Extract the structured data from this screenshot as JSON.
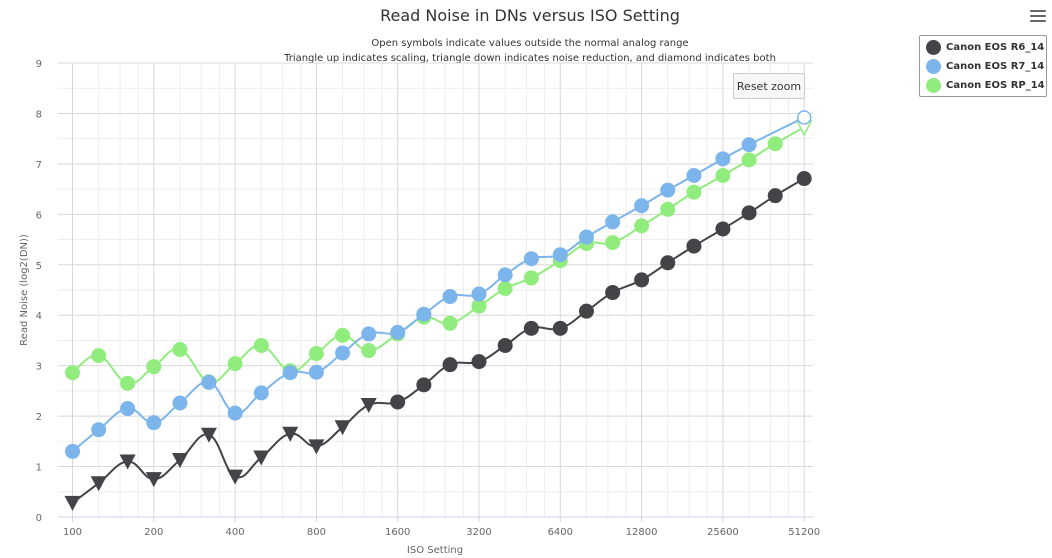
{
  "chart_data": {
    "type": "line",
    "title": "Read Noise in DNs versus ISO Setting",
    "subtitle_lines": [
      "Open symbols indicate values outside the normal analog range",
      "Triangle up indicates scaling, triangle down indicates noise reduction, and diamond indicates both"
    ],
    "xlabel": "ISO Setting",
    "ylabel": "Read Noise (log2(DN))",
    "x_scale": "log2",
    "x_ticks": [
      "100",
      "200",
      "400",
      "800",
      "1600",
      "3200",
      "6400",
      "12800",
      "25600",
      "51200"
    ],
    "x_tick_values": [
      100,
      200,
      400,
      800,
      1600,
      3200,
      6400,
      12800,
      25600,
      51200
    ],
    "y_ticks": [
      "0",
      "1",
      "2",
      "3",
      "4",
      "5",
      "6",
      "7",
      "8",
      "9"
    ],
    "ylim": [
      0,
      9
    ],
    "x": [
      100,
      125,
      160,
      200,
      250,
      320,
      400,
      500,
      640,
      800,
      1000,
      1250,
      1600,
      2000,
      2500,
      3200,
      4000,
      5000,
      6400,
      8000,
      10000,
      12800,
      16000,
      20000,
      25600,
      32000,
      40000,
      51200
    ],
    "grid": true,
    "legend_position": "top-right",
    "series": [
      {
        "name": "Canon EOS R6_14",
        "color": "#434348",
        "values": [
          0.28,
          0.67,
          1.1,
          0.75,
          1.13,
          1.63,
          0.8,
          1.18,
          1.65,
          1.4,
          1.78,
          2.22,
          2.28,
          2.62,
          3.02,
          3.08,
          3.4,
          3.74,
          3.74,
          4.08,
          4.45,
          4.7,
          5.04,
          5.37,
          5.71,
          6.03,
          6.37,
          6.71
        ],
        "markers": [
          "tri-down",
          "tri-down",
          "tri-down",
          "tri-down",
          "tri-down",
          "tri-down",
          "tri-down",
          "tri-down",
          "tri-down",
          "tri-down",
          "tri-down",
          "tri-down",
          "circle",
          "circle",
          "circle",
          "circle",
          "circle",
          "circle",
          "circle",
          "circle",
          "circle",
          "circle",
          "circle",
          "circle",
          "circle",
          "circle",
          "circle",
          "circle"
        ]
      },
      {
        "name": "Canon EOS R7_14",
        "color": "#7cb5ec",
        "values": [
          1.3,
          1.73,
          2.15,
          1.87,
          2.26,
          2.67,
          2.06,
          2.46,
          2.86,
          2.87,
          3.25,
          3.63,
          3.66,
          4.02,
          4.37,
          4.42,
          4.8,
          5.12,
          5.2,
          5.55,
          5.85,
          6.17,
          6.48,
          6.77,
          7.1,
          7.38,
          null,
          7.92
        ],
        "markers": [
          "circle",
          "circle",
          "circle",
          "circle",
          "circle",
          "circle",
          "circle",
          "circle",
          "circle",
          "circle",
          "circle",
          "circle",
          "circle",
          "circle",
          "circle",
          "circle",
          "circle",
          "circle",
          "circle",
          "circle",
          "circle",
          "circle",
          "circle",
          "circle",
          "circle",
          "circle",
          "circle",
          "open-circle"
        ]
      },
      {
        "name": "Canon EOS RP_14",
        "color": "#90ed7d",
        "values": [
          2.86,
          3.2,
          2.65,
          2.98,
          3.32,
          2.68,
          3.04,
          3.4,
          2.9,
          3.24,
          3.6,
          3.3,
          3.63,
          3.96,
          3.84,
          4.18,
          4.53,
          4.74,
          5.08,
          5.42,
          5.44,
          5.77,
          6.1,
          6.44,
          6.77,
          7.08,
          7.4,
          7.73
        ],
        "markers": [
          "circle",
          "circle",
          "circle",
          "circle",
          "circle",
          "circle",
          "circle",
          "circle",
          "circle",
          "circle",
          "circle",
          "circle",
          "circle",
          "circle",
          "circle",
          "circle",
          "circle",
          "circle",
          "circle",
          "circle",
          "circle",
          "circle",
          "circle",
          "circle",
          "circle",
          "circle",
          "circle",
          "open-tri-down"
        ]
      }
    ]
  },
  "ui": {
    "reset_zoom_label": "Reset zoom",
    "menu_icon": "hamburger-menu-icon"
  }
}
